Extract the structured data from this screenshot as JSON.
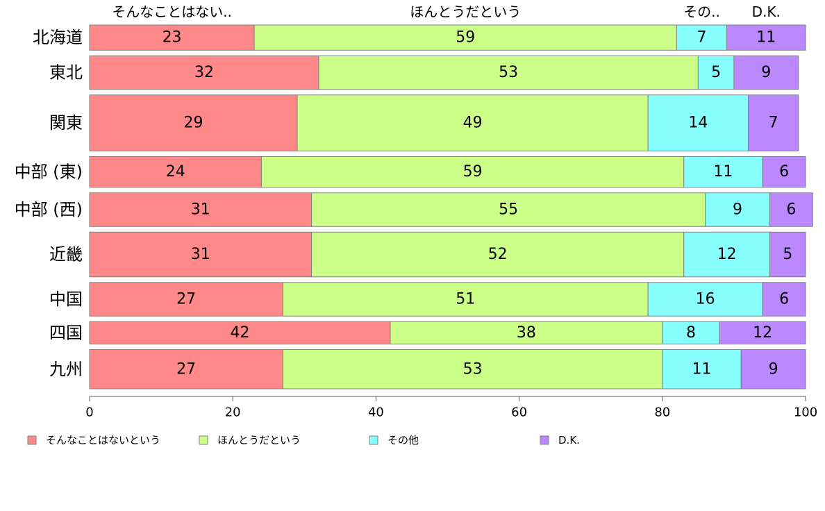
{
  "chart_data": {
    "type": "bar",
    "orientation": "horizontal",
    "stacked": true,
    "categories": [
      "北海道",
      "東北",
      "関東",
      "中部 (東)",
      "中部 (西)",
      "近畿",
      "中国",
      "四国",
      "九州"
    ],
    "series": [
      {
        "name": "そんなことはないという",
        "top_label": "そんなことはない..",
        "values": [
          23,
          32,
          29,
          24,
          31,
          31,
          27,
          42,
          27
        ]
      },
      {
        "name": "ほんとうだという",
        "top_label": "ほんとうだという",
        "values": [
          59,
          53,
          49,
          59,
          55,
          52,
          51,
          38,
          53
        ]
      },
      {
        "name": "その他",
        "top_label": "その..",
        "values": [
          7,
          5,
          14,
          11,
          9,
          12,
          16,
          8,
          11
        ]
      },
      {
        "name": "D.K.",
        "top_label": "D.K.",
        "values": [
          11,
          9,
          7,
          6,
          6,
          5,
          6,
          12,
          9
        ]
      }
    ],
    "bar_weights": [
      9,
      12,
      20,
      11,
      12,
      16,
      12,
      8,
      14
    ],
    "xlim": [
      0,
      100
    ],
    "xticks": [
      0,
      20,
      40,
      60,
      80,
      100
    ],
    "xlabel": "",
    "ylabel": "",
    "title": "",
    "legend": {
      "position": "bottom"
    },
    "grid": false,
    "colors": [
      "#ff8888",
      "#ccff88",
      "#88ffff",
      "#bb88ff"
    ]
  }
}
